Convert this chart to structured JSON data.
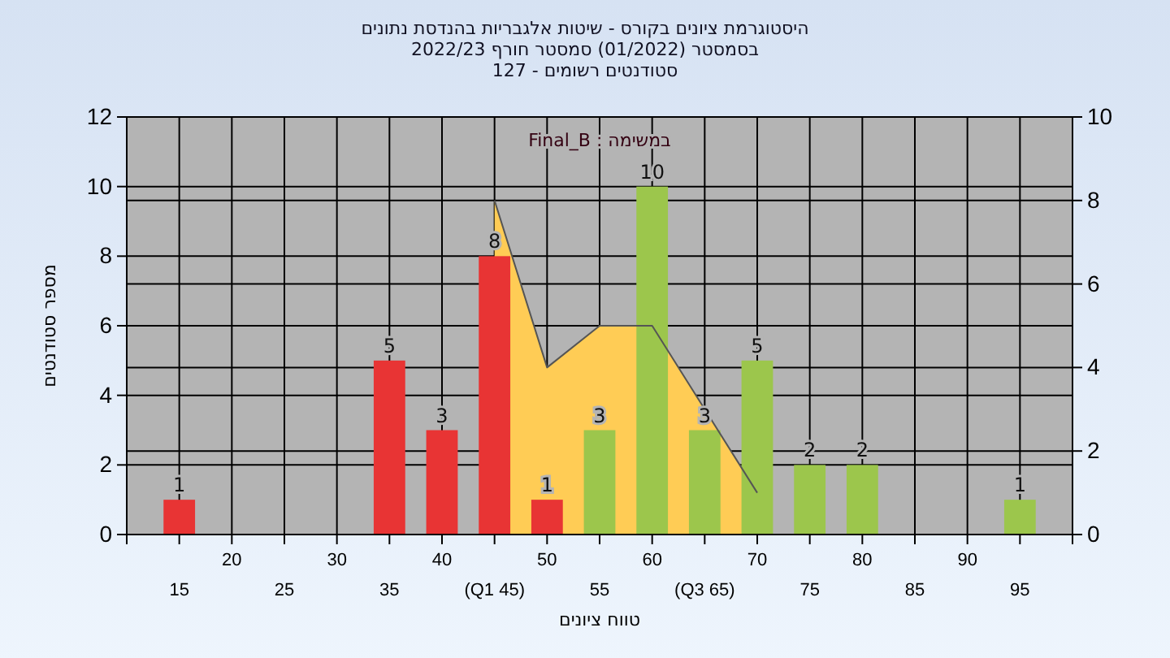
{
  "chart_data": {
    "type": "bar",
    "title": "היסטוגרמת ציונים בקורס - שיטות אלגבריות בהנדסת נתונים",
    "subtitle": "בסמסטר  (01/2022)  סמסטר חורף 2022/23\nסטודנטים רשומים - 127",
    "xlabel": "טווח ציונים",
    "ylabel": "מספר סטודנטים",
    "annotations": [
      "במשימה : Final_B"
    ],
    "categories": [
      "15",
      "20",
      "25",
      "30",
      "35",
      "40",
      "(Q1 45)",
      "50",
      "55",
      "60",
      "(Q3 65)",
      "70",
      "75",
      "80",
      "85",
      "90",
      "95"
    ],
    "series": [
      {
        "type": "area",
        "axis": "y2",
        "color": "#ffcc55",
        "values": [
          null,
          null,
          null,
          null,
          null,
          null,
          8,
          4,
          5,
          5,
          3,
          1,
          null,
          null,
          null,
          null,
          null
        ]
      },
      {
        "colors": [
          "#e83434",
          null,
          null,
          null,
          "#e83434",
          "#e83434",
          "#e83434",
          "#e83434",
          "#9cc64c",
          "#9cc64c",
          "#9cc64c",
          "#9cc64c",
          "#9cc64c",
          "#9cc64c",
          null,
          null,
          "#9cc64c"
        ],
        "values": [
          1,
          null,
          null,
          null,
          5,
          3,
          8,
          1,
          3,
          10,
          3,
          5,
          2,
          2,
          null,
          null,
          1
        ],
        "value_labels": [
          "1",
          null,
          null,
          null,
          "5",
          "3",
          "8",
          "1",
          "3",
          "10",
          "3",
          "5",
          "2",
          "2",
          null,
          null,
          "1"
        ]
      }
    ],
    "ylim": [
      0,
      12
    ],
    "yticks": [
      0,
      2,
      4,
      6,
      8,
      10,
      12
    ],
    "y2lim": [
      0,
      10
    ],
    "y2ticks": [
      0,
      2,
      4,
      6,
      8,
      10
    ],
    "grid": true
  }
}
